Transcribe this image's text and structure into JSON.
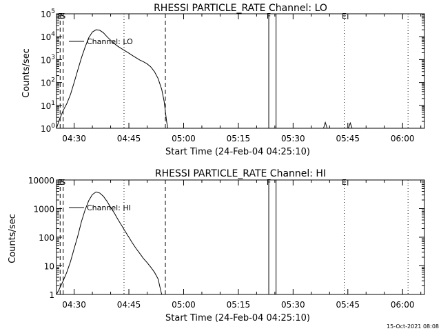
{
  "footer_date": "15-Oct-2021 08:08",
  "chart_data": [
    {
      "type": "line",
      "title": "RHESSI PARTICLE_RATE Channel: LO",
      "xlabel": "Start Time (24-Feb-04 04:25:10)",
      "ylabel": "Counts/sec",
      "y_scale": "log",
      "xlim": [
        "04:25:10",
        "06:06:00"
      ],
      "ylim": [
        1,
        100000
      ],
      "x_ticks": [
        "04:30",
        "04:45",
        "05:00",
        "05:15",
        "05:30",
        "05:45",
        "06:00"
      ],
      "y_ticks": [
        1,
        10,
        100,
        1000,
        10000,
        100000
      ],
      "y_tick_labels": [
        {
          "base": "10",
          "exp": "0"
        },
        {
          "base": "10",
          "exp": "1"
        },
        {
          "base": "10",
          "exp": "2"
        },
        {
          "base": "10",
          "exp": "3"
        },
        {
          "base": "10",
          "exp": "4"
        },
        {
          "base": "10",
          "exp": "5"
        }
      ],
      "legend": {
        "label": "Channel: LO",
        "placement": "top-left"
      },
      "markers": [
        {
          "label": "E",
          "time": "04:26:10",
          "style": "dashed"
        },
        {
          "label": "S",
          "time": "04:27:00",
          "style": "dashed"
        },
        {
          "label": "",
          "time": "04:43:40",
          "style": "dotted"
        },
        {
          "label": "",
          "time": "04:55:00",
          "style": "dashed"
        },
        {
          "label": "F",
          "time": "05:23:20",
          "style": "solid"
        },
        {
          "label": "",
          "time": "05:25:20",
          "style": "solid"
        },
        {
          "label": "E",
          "time": "05:44:00",
          "style": "dotted"
        },
        {
          "label": "",
          "time": "06:01:30",
          "style": "dotted"
        }
      ],
      "series": [
        {
          "name": "Channel: LO",
          "segments": [
            [
              [
                "04:25:10",
                1
              ],
              [
                "04:26:00",
                2.5
              ],
              [
                "04:27:00",
                6
              ],
              [
                "04:28:00",
                12
              ],
              [
                "04:29:00",
                30
              ],
              [
                "04:30:00",
                100
              ],
              [
                "04:31:00",
                350
              ],
              [
                "04:32:00",
                1200
              ],
              [
                "04:33:00",
                3500
              ],
              [
                "04:34:00",
                9000
              ],
              [
                "04:35:00",
                16000
              ],
              [
                "04:36:00",
                20000
              ],
              [
                "04:37:00",
                19000
              ],
              [
                "04:38:00",
                15000
              ],
              [
                "04:39:00",
                10000
              ],
              [
                "04:40:00",
                7000
              ],
              [
                "04:41:00",
                5000
              ],
              [
                "04:42:00",
                3800
              ],
              [
                "04:43:00",
                3000
              ],
              [
                "04:44:00",
                2400
              ],
              [
                "04:45:00",
                1900
              ],
              [
                "04:46:00",
                1500
              ],
              [
                "04:47:00",
                1200
              ],
              [
                "04:48:00",
                950
              ],
              [
                "04:49:00",
                800
              ],
              [
                "04:50:00",
                650
              ],
              [
                "04:51:00",
                480
              ],
              [
                "04:52:00",
                300
              ],
              [
                "04:53:00",
                150
              ],
              [
                "04:54:00",
                50
              ],
              [
                "04:54:40",
                15
              ],
              [
                "04:55:20",
                2
              ],
              [
                "04:55:40",
                1
              ]
            ],
            [
              [
                "05:38:20",
                1
              ],
              [
                "05:38:50",
                1.8
              ],
              [
                "05:39:20",
                1
              ]
            ],
            [
              [
                "05:45:10",
                1
              ],
              [
                "05:45:40",
                1.7
              ],
              [
                "05:46:10",
                1
              ]
            ]
          ]
        }
      ]
    },
    {
      "type": "line",
      "title": "RHESSI PARTICLE_RATE Channel: HI",
      "xlabel": "Start Time (24-Feb-04 04:25:10)",
      "ylabel": "Counts/sec",
      "y_scale": "log",
      "xlim": [
        "04:25:10",
        "06:06:00"
      ],
      "ylim": [
        1,
        10000
      ],
      "x_ticks": [
        "04:30",
        "04:45",
        "05:00",
        "05:15",
        "05:30",
        "05:45",
        "06:00"
      ],
      "y_ticks": [
        1,
        10,
        100,
        1000,
        10000
      ],
      "y_tick_labels": [
        {
          "base": "1",
          "exp": ""
        },
        {
          "base": "10",
          "exp": ""
        },
        {
          "base": "100",
          "exp": ""
        },
        {
          "base": "1000",
          "exp": ""
        },
        {
          "base": "10000",
          "exp": ""
        }
      ],
      "legend": {
        "label": "Channel: HI",
        "placement": "top-left"
      },
      "markers": [
        {
          "label": "E",
          "time": "04:26:10",
          "style": "dashed"
        },
        {
          "label": "S",
          "time": "04:27:00",
          "style": "dashed"
        },
        {
          "label": "",
          "time": "04:43:40",
          "style": "dotted"
        },
        {
          "label": "",
          "time": "04:55:00",
          "style": "dashed"
        },
        {
          "label": "F",
          "time": "05:23:20",
          "style": "solid"
        },
        {
          "label": "",
          "time": "05:25:20",
          "style": "solid"
        },
        {
          "label": "E",
          "time": "05:44:00",
          "style": "dotted"
        },
        {
          "label": "",
          "time": "06:01:30",
          "style": "dotted"
        }
      ],
      "series": [
        {
          "name": "Channel: HI",
          "segments": [
            [
              [
                "04:25:10",
                1
              ],
              [
                "04:26:00",
                1.6
              ],
              [
                "04:27:00",
                3
              ],
              [
                "04:28:00",
                6
              ],
              [
                "04:29:00",
                14
              ],
              [
                "04:30:00",
                40
              ],
              [
                "04:31:00",
                110
              ],
              [
                "04:32:00",
                350
              ],
              [
                "04:33:00",
                900
              ],
              [
                "04:34:00",
                1900
              ],
              [
                "04:35:00",
                3100
              ],
              [
                "04:36:00",
                3800
              ],
              [
                "04:37:00",
                3500
              ],
              [
                "04:38:00",
                2700
              ],
              [
                "04:39:00",
                1800
              ],
              [
                "04:40:00",
                1100
              ],
              [
                "04:41:00",
                700
              ],
              [
                "04:42:00",
                420
              ],
              [
                "04:43:00",
                260
              ],
              [
                "04:44:00",
                160
              ],
              [
                "04:45:00",
                100
              ],
              [
                "04:46:00",
                62
              ],
              [
                "04:47:00",
                40
              ],
              [
                "04:48:00",
                27
              ],
              [
                "04:49:00",
                18
              ],
              [
                "04:50:00",
                13
              ],
              [
                "04:51:00",
                9
              ],
              [
                "04:52:00",
                6
              ],
              [
                "04:53:00",
                3.5
              ],
              [
                "04:53:40",
                1.5
              ],
              [
                "04:54:00",
                1
              ]
            ]
          ]
        }
      ]
    }
  ]
}
